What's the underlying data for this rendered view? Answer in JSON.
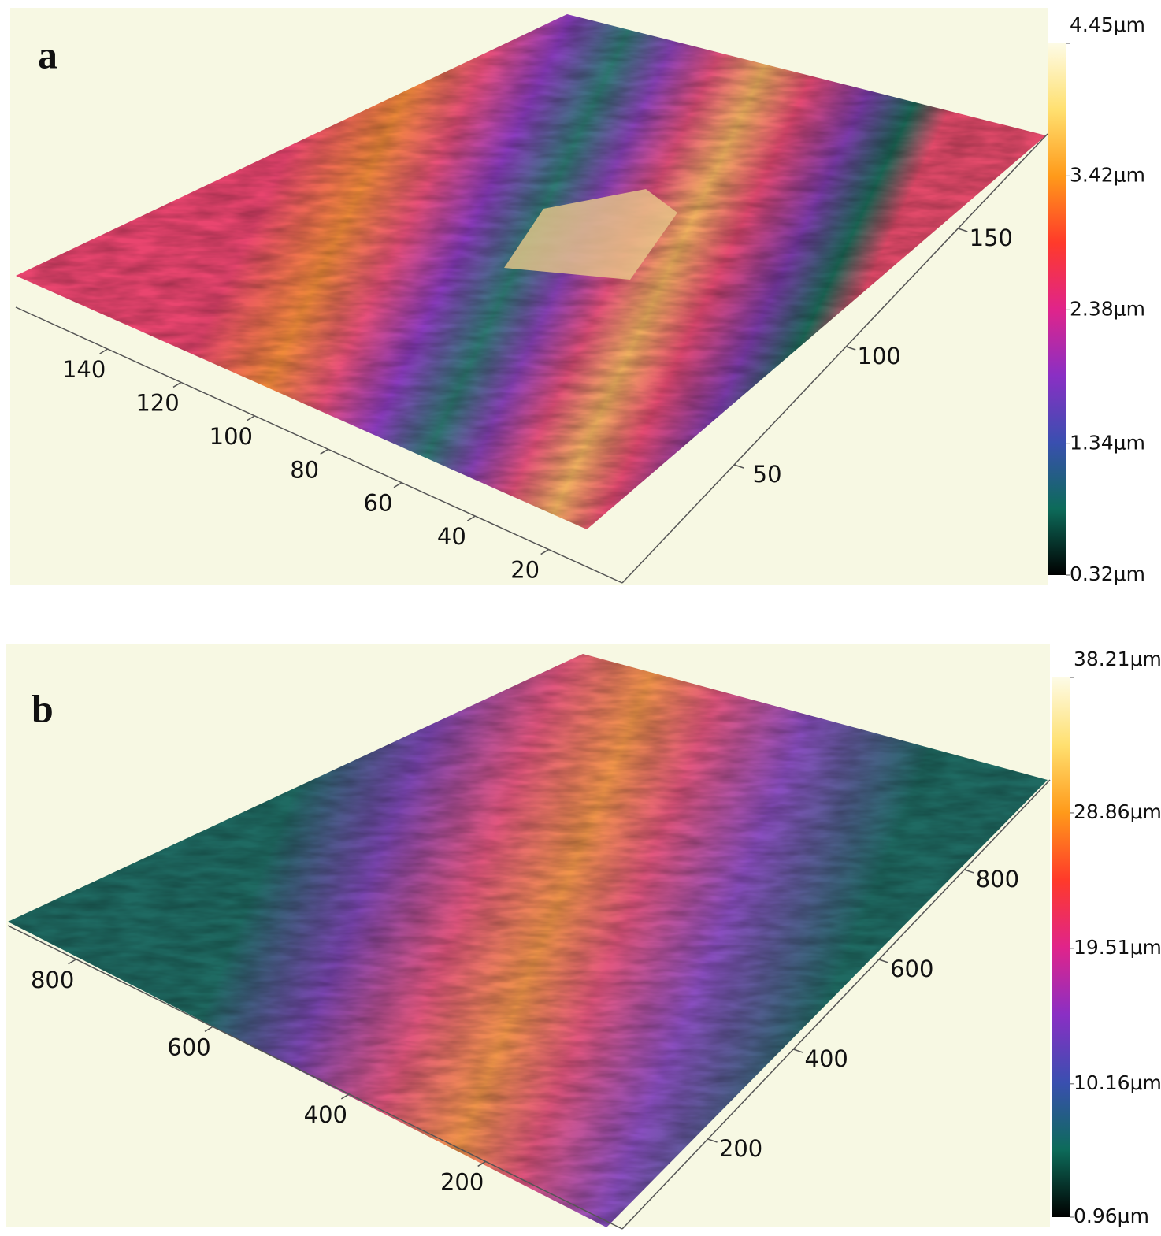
{
  "chart_data": [
    {
      "type": "surface",
      "panel_label": "a",
      "xlim": [
        0,
        165
      ],
      "xticks": [
        20,
        40,
        60,
        80,
        100,
        120,
        140
      ],
      "ylim": [
        0,
        190
      ],
      "yticks": [
        50,
        100,
        150
      ],
      "zlim": [
        0.32,
        4.45
      ],
      "zticks": [
        {
          "value": 0.32,
          "label": "0.32μm"
        },
        {
          "value": 1.34,
          "label": "1.34μm"
        },
        {
          "value": 2.38,
          "label": "2.38μm"
        },
        {
          "value": 3.42,
          "label": "3.42μm"
        },
        {
          "value": 4.45,
          "label": "4.45μm"
        }
      ],
      "colormap": [
        "#000000",
        "#0d6b5a",
        "#3a4fb0",
        "#8a2fc4",
        "#e0248a",
        "#ff3a2a",
        "#ff9a1a",
        "#ffe070",
        "#fdfbe6"
      ]
    },
    {
      "type": "surface",
      "panel_label": "b",
      "xlim": [
        0,
        900
      ],
      "xticks": [
        200,
        400,
        600,
        800
      ],
      "ylim": [
        0,
        1000
      ],
      "yticks": [
        200,
        400,
        600,
        800
      ],
      "zlim": [
        0.96,
        38.21
      ],
      "zticks": [
        {
          "value": 0.96,
          "label": "0.96μm"
        },
        {
          "value": 10.16,
          "label": "10.16μm"
        },
        {
          "value": 19.51,
          "label": "19.51μm"
        },
        {
          "value": 28.86,
          "label": "28.86μm"
        },
        {
          "value": 38.21,
          "label": "38.21μm"
        }
      ],
      "colormap": [
        "#000000",
        "#0d6b5a",
        "#3a4fb0",
        "#8a2fc4",
        "#e0248a",
        "#ff3a2a",
        "#ff9a1a",
        "#ffe070",
        "#fdfbe6"
      ]
    }
  ]
}
